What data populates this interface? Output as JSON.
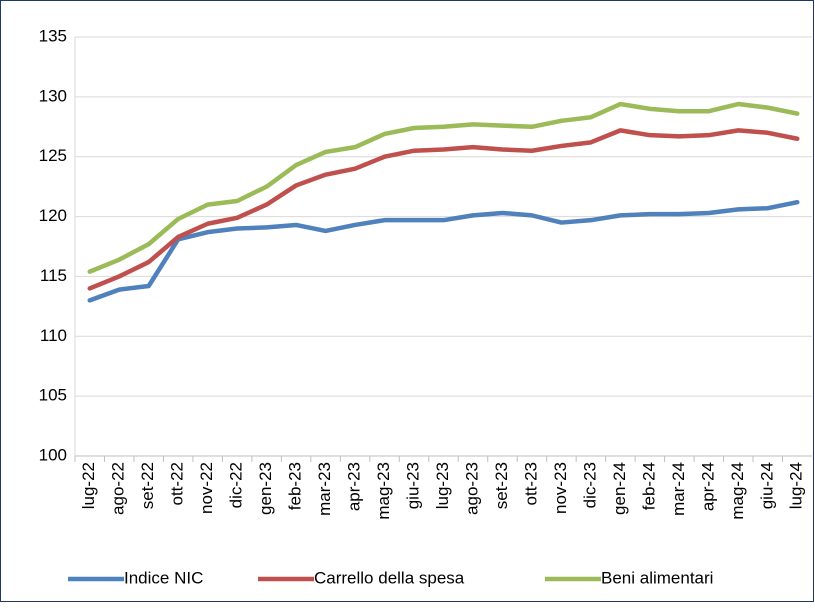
{
  "chart_data": {
    "type": "line",
    "categories": [
      "lug-22",
      "ago-22",
      "set-22",
      "ott-22",
      "nov-22",
      "dic-22",
      "gen-23",
      "feb-23",
      "mar-23",
      "apr-23",
      "mag-23",
      "giu-23",
      "lug-23",
      "ago-23",
      "set-23",
      "ott-23",
      "nov-23",
      "dic-23",
      "gen-24",
      "feb-24",
      "mar-24",
      "apr-24",
      "mag-24",
      "giu-24",
      "lug-24"
    ],
    "series": [
      {
        "name": "Indice NIC",
        "color": "#4f81bd",
        "values": [
          113.0,
          113.9,
          114.2,
          118.1,
          118.7,
          119.0,
          119.1,
          119.3,
          118.8,
          119.3,
          119.7,
          119.7,
          119.7,
          120.1,
          120.3,
          120.1,
          119.5,
          119.7,
          120.1,
          120.2,
          120.2,
          120.3,
          120.6,
          120.7,
          121.2
        ]
      },
      {
        "name": "Carrello della spesa",
        "color": "#c0504d",
        "values": [
          114.0,
          115.0,
          116.2,
          118.3,
          119.4,
          119.9,
          121.0,
          122.6,
          123.5,
          124.0,
          125.0,
          125.5,
          125.6,
          125.8,
          125.6,
          125.5,
          125.9,
          126.2,
          127.2,
          126.8,
          126.7,
          126.8,
          127.2,
          127.0,
          126.5
        ]
      },
      {
        "name": "Beni alimentari",
        "color": "#9bbb59",
        "values": [
          115.4,
          116.4,
          117.7,
          119.8,
          121.0,
          121.3,
          122.5,
          124.3,
          125.4,
          125.8,
          126.9,
          127.4,
          127.5,
          127.7,
          127.6,
          127.5,
          128.0,
          128.3,
          129.4,
          129.0,
          128.8,
          128.8,
          129.4,
          129.1,
          128.6
        ]
      }
    ],
    "ylim": [
      100,
      135
    ],
    "yticks": [
      100,
      105,
      110,
      115,
      120,
      125,
      130,
      135
    ],
    "grid": true,
    "legend": "bottom"
  }
}
